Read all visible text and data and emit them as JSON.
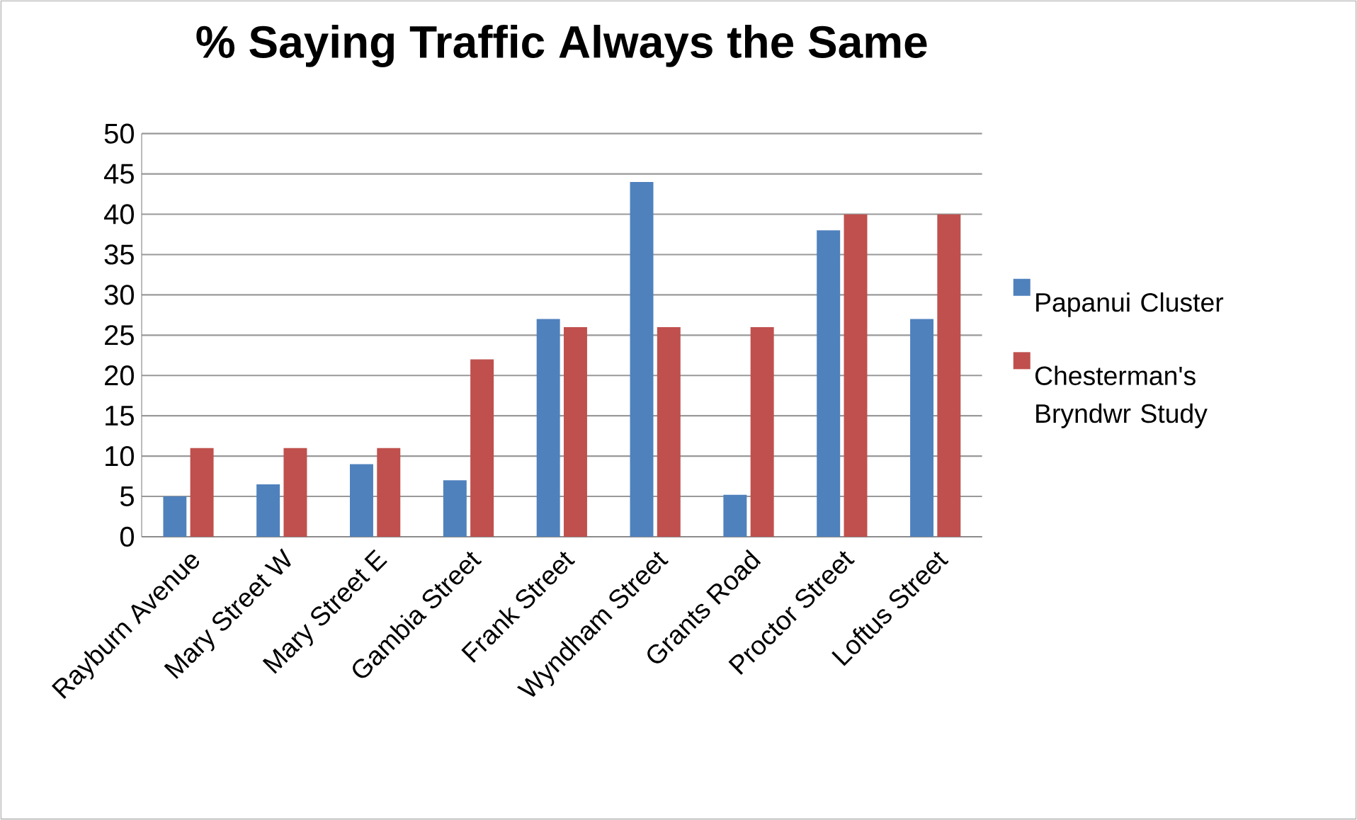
{
  "chart_data": {
    "type": "bar",
    "title": "% Saying Traffic Always the Same",
    "categories": [
      "Rayburn Avenue",
      "Mary Street W",
      "Mary Street E",
      "Gambia Street",
      "Frank Street",
      "Wyndham Street",
      "Grants Road",
      "Proctor Street",
      "Loftus Street"
    ],
    "series": [
      {
        "name": "Papanui Cluster",
        "color": "#4f81bd",
        "values": [
          5,
          6.5,
          9,
          7,
          27,
          44,
          5.2,
          38,
          27
        ]
      },
      {
        "name": "Chesterman's Bryndwr Study",
        "color": "#c0504d",
        "values": [
          11,
          11,
          11,
          22,
          26,
          26,
          26,
          40,
          40
        ]
      }
    ],
    "ylim": [
      0,
      50
    ],
    "yticks": [
      0,
      5,
      10,
      15,
      20,
      25,
      30,
      35,
      40,
      45,
      50
    ],
    "grid": "y",
    "legend": "right"
  }
}
